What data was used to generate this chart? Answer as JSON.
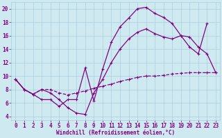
{
  "xlabel": "Windchill (Refroidissement éolien,°C)",
  "background_color": "#ceeaf0",
  "line_color": "#800080",
  "grid_color": "#aaccdd",
  "xlim": [
    -0.5,
    23.5
  ],
  "ylim": [
    3.5,
    21
  ],
  "yticks": [
    4,
    6,
    8,
    10,
    12,
    14,
    16,
    18,
    20
  ],
  "xticks": [
    0,
    1,
    2,
    3,
    4,
    5,
    6,
    7,
    8,
    9,
    10,
    11,
    12,
    13,
    14,
    15,
    16,
    17,
    18,
    19,
    20,
    21,
    22,
    23
  ],
  "curve1_x": [
    0,
    1,
    2,
    3,
    4,
    5,
    6,
    7,
    8,
    9,
    10,
    11,
    12,
    13,
    14,
    15,
    16,
    17,
    18,
    19,
    20,
    21,
    22
  ],
  "curve1_y": [
    9.5,
    8.0,
    7.3,
    6.5,
    6.5,
    5.5,
    6.5,
    6.5,
    11.2,
    6.3,
    11.0,
    15.0,
    17.3,
    18.6,
    20.0,
    20.2,
    19.3,
    18.7,
    17.8,
    16.0,
    14.3,
    13.3,
    17.8
  ],
  "curve2_x": [
    0,
    1,
    2,
    3,
    4,
    5,
    6,
    7,
    8,
    9,
    10,
    11,
    12,
    13,
    14,
    15,
    16,
    17,
    18,
    19,
    20,
    21,
    22,
    23
  ],
  "curve2_y": [
    9.5,
    8.0,
    7.3,
    8.0,
    8.0,
    7.5,
    7.2,
    7.5,
    7.8,
    8.2,
    8.5,
    8.8,
    9.2,
    9.5,
    9.8,
    10.0,
    10.0,
    10.1,
    10.3,
    10.4,
    10.5,
    10.5,
    10.5,
    10.5
  ],
  "curve3_x": [
    0,
    1,
    2,
    3,
    4,
    5,
    6,
    7,
    8,
    9,
    10,
    11,
    12,
    13,
    14,
    15,
    16,
    17,
    18,
    19,
    20,
    21,
    22,
    23
  ],
  "curve3_y": [
    9.5,
    8.0,
    7.3,
    8.0,
    7.5,
    6.5,
    5.3,
    4.5,
    4.3,
    7.5,
    9.5,
    12.0,
    14.0,
    15.5,
    16.5,
    17.0,
    16.3,
    15.8,
    15.5,
    16.0,
    15.8,
    14.3,
    13.3,
    10.5
  ]
}
